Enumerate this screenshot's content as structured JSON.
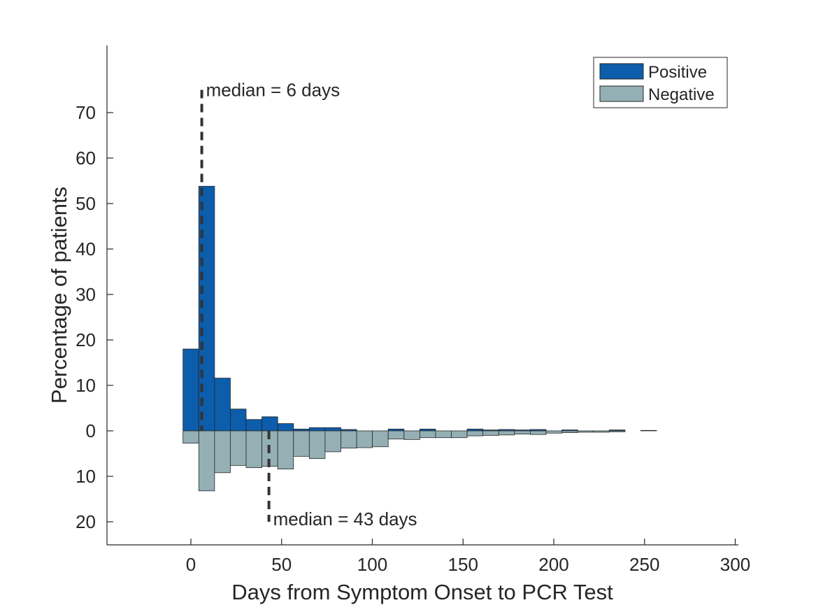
{
  "chart_data": {
    "type": "bar",
    "xlabel": "Days from Symptom Onset to PCR Test",
    "ylabel": "Percentage of patients",
    "xlim": [
      -45,
      300
    ],
    "ylim": [
      -25,
      80
    ],
    "bin_width": 8.7,
    "xticks": [
      0,
      50,
      100,
      150,
      200,
      250,
      300
    ],
    "xtick_labels": [
      "0",
      "50",
      "100",
      "150",
      "200",
      "250",
      "300"
    ],
    "yticks": [
      -20,
      -10,
      0,
      10,
      20,
      30,
      40,
      50,
      60,
      70
    ],
    "ytick_labels": [
      "20",
      "10",
      "0",
      "10",
      "20",
      "30",
      "40",
      "50",
      "60",
      "70"
    ],
    "series": [
      {
        "name": "Positive",
        "color": "#0C5DAB",
        "bins_start": [
          -4.35,
          4.35,
          13.05,
          21.75,
          30.45,
          39.15,
          47.85,
          56.55,
          65.25,
          73.95,
          82.65,
          108.75,
          126.15,
          152.25,
          160.95,
          169.65,
          178.35,
          187.05,
          204.45,
          230.55,
          247.95
        ],
        "values": [
          18,
          53.8,
          11.6,
          4.8,
          2.5,
          3.1,
          1.6,
          0.4,
          0.7,
          0.7,
          0.3,
          0.4,
          0.4,
          0.4,
          0.2,
          0.3,
          0.2,
          0.3,
          0.2,
          0.2,
          0.1
        ]
      },
      {
        "name": "Negative",
        "color": "#94B0B4",
        "bins_start": [
          -4.35,
          4.35,
          13.05,
          21.75,
          30.45,
          39.15,
          47.85,
          56.55,
          65.25,
          73.95,
          82.65,
          91.35,
          100.05,
          108.75,
          117.45,
          126.15,
          134.85,
          143.55,
          152.25,
          160.95,
          169.65,
          178.35,
          187.05,
          195.75,
          204.45,
          213.15,
          221.85,
          230.55
        ],
        "values": [
          -2.7,
          -13.2,
          -9.2,
          -7.6,
          -8.1,
          -7.8,
          -8.4,
          -5.6,
          -6.1,
          -4.6,
          -3.8,
          -3.7,
          -3.5,
          -1.8,
          -1.9,
          -1.5,
          -1.5,
          -1.5,
          -1.1,
          -1,
          -0.9,
          -0.7,
          -0.8,
          -0.5,
          -0.4,
          -0.3,
          -0.3,
          -0.2
        ]
      }
    ],
    "medians": [
      {
        "x": 6,
        "y_top": 75,
        "y_bottom": 0,
        "label": "median = 6 days"
      },
      {
        "x": 43,
        "y_top": 0,
        "y_bottom": -20,
        "label": "median = 43 days"
      }
    ],
    "legend_position": "top-right",
    "grid": false,
    "box": false,
    "median_line_color": "#333333"
  }
}
